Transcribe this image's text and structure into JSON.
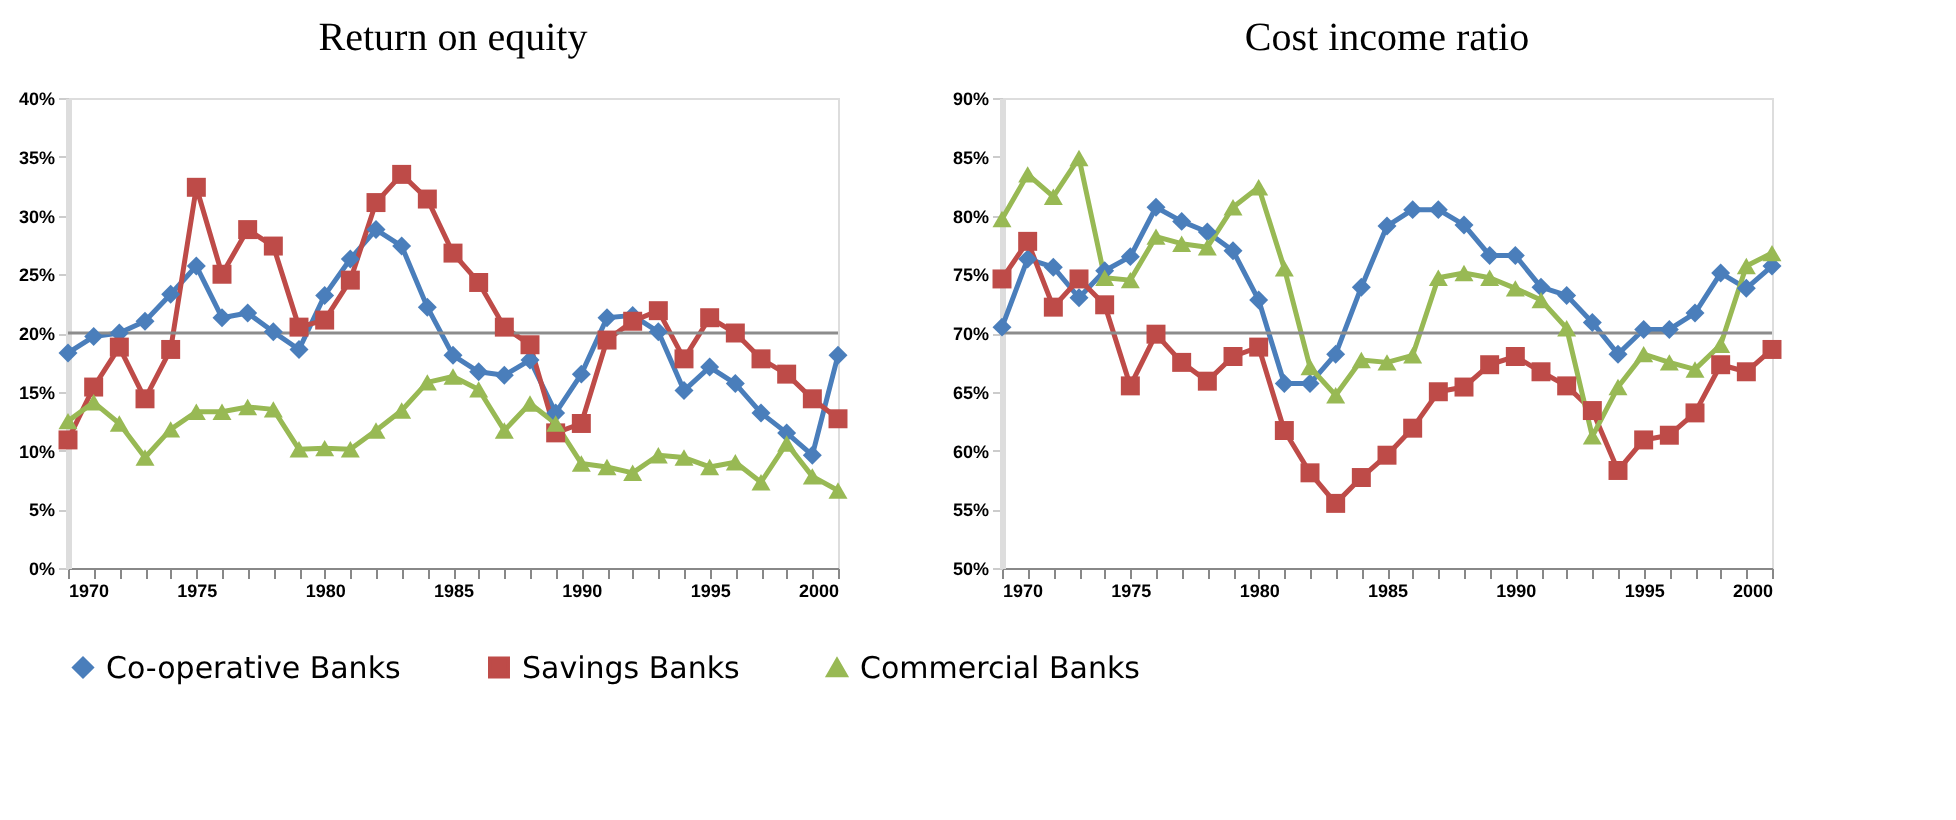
{
  "chart_data": [
    {
      "type": "line",
      "title": "Return on equity",
      "x": [
        1970,
        1971,
        1972,
        1973,
        1974,
        1975,
        1976,
        1977,
        1978,
        1979,
        1980,
        1981,
        1982,
        1983,
        1984,
        1985,
        1986,
        1987,
        1988,
        1989,
        1990,
        1991,
        1992,
        1993,
        1994,
        1995,
        1996,
        1997,
        1998,
        1999,
        2000
      ],
      "series": [
        {
          "name": "Co-operative Banks",
          "color": "#4a7ebb",
          "marker": "diamond",
          "values": [
            18.3,
            19.7,
            20.0,
            21.0,
            23.3,
            25.7,
            21.3,
            21.7,
            20.1,
            18.6,
            23.2,
            26.3,
            28.8,
            27.4,
            22.2,
            18.1,
            16.7,
            16.4,
            17.7,
            13.2,
            16.5,
            21.3,
            21.5,
            20.1,
            15.1,
            17.1,
            15.7,
            13.2,
            11.5,
            9.6,
            18.1
          ]
        },
        {
          "name": "Savings Banks",
          "color": "#be4b48",
          "marker": "square",
          "values": [
            10.9,
            15.4,
            18.8,
            14.4,
            18.6,
            32.4,
            25.0,
            28.8,
            27.4,
            20.5,
            21.1,
            24.5,
            31.1,
            33.5,
            31.4,
            26.8,
            24.3,
            20.5,
            19.0,
            11.5,
            12.3,
            19.4,
            21.0,
            21.9,
            17.8,
            21.3,
            20.0,
            17.8,
            16.5,
            14.4,
            12.7
          ]
        },
        {
          "name": "Commercial Banks",
          "color": "#98b954",
          "marker": "triangle",
          "values": [
            12.5,
            14.1,
            12.3,
            9.4,
            11.8,
            13.3,
            13.3,
            13.7,
            13.5,
            10.1,
            10.2,
            10.1,
            11.7,
            13.4,
            15.8,
            16.3,
            15.2,
            11.7,
            14.0,
            12.3,
            8.9,
            8.6,
            8.1,
            9.6,
            9.4,
            8.6,
            9.0,
            7.3,
            10.6,
            7.8,
            6.6
          ]
        }
      ],
      "xlim": [
        1970,
        2000
      ],
      "xticks": [
        1970,
        {
          "value": 1971,
          "label": null
        },
        {
          "value": 1972,
          "label": null
        },
        {
          "value": 1973,
          "label": null
        },
        {
          "value": 1974,
          "label": null
        },
        1975,
        {
          "value": 1976,
          "label": null
        },
        {
          "value": 1977,
          "label": null
        },
        {
          "value": 1978,
          "label": null
        },
        {
          "value": 1979,
          "label": null
        },
        1980,
        {
          "value": 1981,
          "label": null
        },
        {
          "value": 1982,
          "label": null
        },
        {
          "value": 1983,
          "label": null
        },
        {
          "value": 1984,
          "label": null
        },
        1985,
        {
          "value": 1986,
          "label": null
        },
        {
          "value": 1987,
          "label": null
        },
        {
          "value": 1988,
          "label": null
        },
        {
          "value": 1989,
          "label": null
        },
        1990,
        {
          "value": 1991,
          "label": null
        },
        {
          "value": 1992,
          "label": null
        },
        {
          "value": 1993,
          "label": null
        },
        {
          "value": 1994,
          "label": null
        },
        1995,
        {
          "value": 1996,
          "label": null
        },
        {
          "value": 1997,
          "label": null
        },
        {
          "value": 1998,
          "label": null
        },
        {
          "value": 1999,
          "label": null
        },
        2000
      ],
      "ylim": [
        0,
        40
      ],
      "yticks": [
        {
          "value": 0,
          "label": "0%"
        },
        {
          "value": 5,
          "label": "5%"
        },
        {
          "value": 10,
          "label": "10%"
        },
        {
          "value": 15,
          "label": "15%"
        },
        {
          "value": 20,
          "label": "20%"
        },
        {
          "value": 25,
          "label": "25%"
        },
        {
          "value": 30,
          "label": "30%"
        },
        {
          "value": 35,
          "label": "35%"
        },
        {
          "value": 40,
          "label": "40%"
        }
      ],
      "ref_lines": [
        {
          "axis": "y",
          "value": 20,
          "color": "#8c8c8c"
        }
      ],
      "grid": false,
      "legend": "bottom"
    },
    {
      "type": "line",
      "title": "Cost income ratio",
      "x": [
        1970,
        1971,
        1972,
        1973,
        1974,
        1975,
        1976,
        1977,
        1978,
        1979,
        1980,
        1981,
        1982,
        1983,
        1984,
        1985,
        1986,
        1987,
        1988,
        1989,
        1990,
        1991,
        1992,
        1993,
        1994,
        1995,
        1996,
        1997,
        1998,
        1999,
        2000
      ],
      "series": [
        {
          "name": "Co-operative Banks",
          "color": "#4a7ebb",
          "marker": "diamond",
          "values": [
            70.5,
            76.3,
            75.6,
            73.0,
            75.3,
            76.5,
            80.7,
            79.5,
            78.6,
            77.0,
            72.8,
            65.7,
            65.7,
            68.2,
            73.9,
            79.1,
            80.5,
            80.5,
            79.2,
            76.6,
            76.6,
            73.9,
            73.2,
            70.9,
            68.2,
            70.3,
            70.3,
            71.7,
            75.1,
            73.8,
            75.7
          ]
        },
        {
          "name": "Savings Banks",
          "color": "#be4b48",
          "marker": "square",
          "values": [
            74.6,
            77.8,
            72.2,
            74.6,
            72.4,
            65.5,
            69.9,
            67.5,
            65.9,
            68.0,
            68.8,
            61.7,
            58.1,
            55.5,
            57.7,
            59.6,
            61.9,
            65.0,
            65.4,
            67.3,
            68.0,
            66.7,
            65.5,
            63.4,
            58.3,
            60.9,
            61.3,
            63.2,
            67.3,
            66.7,
            68.6
          ]
        },
        {
          "name": "Commercial Banks",
          "color": "#98b954",
          "marker": "triangle",
          "values": [
            79.7,
            83.5,
            81.6,
            84.9,
            74.7,
            74.5,
            78.2,
            77.6,
            77.3,
            80.7,
            82.4,
            75.5,
            67.1,
            64.7,
            67.7,
            67.5,
            68.1,
            74.7,
            75.1,
            74.7,
            73.8,
            72.8,
            70.4,
            61.2,
            65.4,
            68.2,
            67.5,
            66.9,
            69.0,
            75.7,
            76.8
          ]
        }
      ],
      "xlim": [
        1970,
        2000
      ],
      "xticks": [
        1970,
        {
          "value": 1971,
          "label": null
        },
        {
          "value": 1972,
          "label": null
        },
        {
          "value": 1973,
          "label": null
        },
        {
          "value": 1974,
          "label": null
        },
        1975,
        {
          "value": 1976,
          "label": null
        },
        {
          "value": 1977,
          "label": null
        },
        {
          "value": 1978,
          "label": null
        },
        {
          "value": 1979,
          "label": null
        },
        1980,
        {
          "value": 1981,
          "label": null
        },
        {
          "value": 1982,
          "label": null
        },
        {
          "value": 1983,
          "label": null
        },
        {
          "value": 1984,
          "label": null
        },
        1985,
        {
          "value": 1986,
          "label": null
        },
        {
          "value": 1987,
          "label": null
        },
        {
          "value": 1988,
          "label": null
        },
        {
          "value": 1989,
          "label": null
        },
        1990,
        {
          "value": 1991,
          "label": null
        },
        {
          "value": 1992,
          "label": null
        },
        {
          "value": 1993,
          "label": null
        },
        {
          "value": 1994,
          "label": null
        },
        1995,
        {
          "value": 1996,
          "label": null
        },
        {
          "value": 1997,
          "label": null
        },
        {
          "value": 1998,
          "label": null
        },
        {
          "value": 1999,
          "label": null
        },
        2000
      ],
      "ylim": [
        50,
        90
      ],
      "yticks": [
        {
          "value": 50,
          "label": "50%"
        },
        {
          "value": 55,
          "label": "55%"
        },
        {
          "value": 60,
          "label": "60%"
        },
        {
          "value": 65,
          "label": "65%"
        },
        {
          "value": 70,
          "label": "70%"
        },
        {
          "value": 75,
          "label": "75%"
        },
        {
          "value": 80,
          "label": "80%"
        },
        {
          "value": 85,
          "label": "85%"
        },
        {
          "value": 90,
          "label": "90%"
        }
      ],
      "ref_lines": [
        {
          "axis": "y",
          "value": 70,
          "color": "#8c8c8c"
        }
      ],
      "grid": false,
      "legend": "bottom"
    }
  ]
}
